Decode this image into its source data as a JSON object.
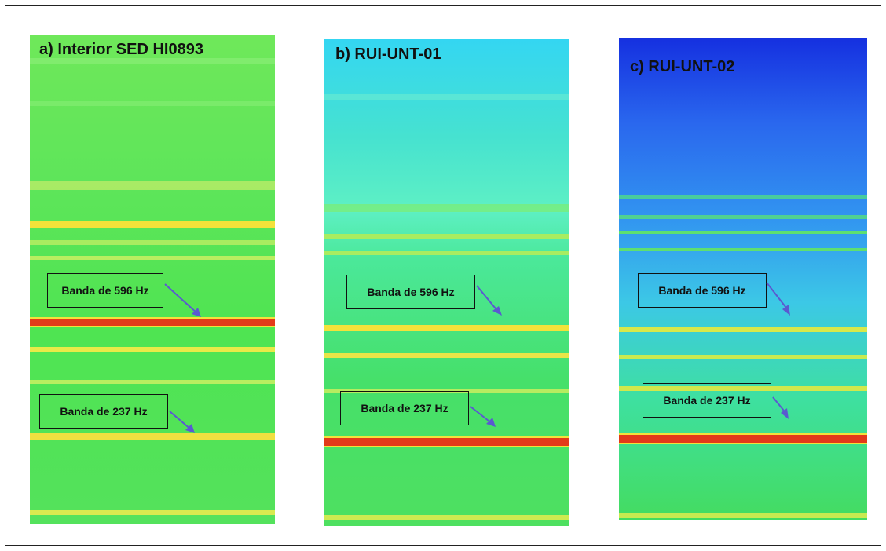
{
  "panels": [
    {
      "title": "a) Interior SED HI0893",
      "labels": [
        "Banda de 596 Hz",
        "Banda de 237 Hz"
      ],
      "palette": {
        "top": "#6ee86a",
        "mid": "#4fe84f",
        "bottom": "#52e45a"
      }
    },
    {
      "title": "b) RUI-UNT-01",
      "labels": [
        "Banda de 596 Hz",
        "Banda de 237 Hz"
      ],
      "palette": {
        "top": "#35d8f0",
        "mid": "#52e4a0",
        "bottom": "#48e060"
      }
    },
    {
      "title": "c) RUI-UNT-02",
      "labels": [
        "Banda de 596 Hz",
        "Banda de 237 Hz"
      ],
      "palette": {
        "top": "#1a3ee6",
        "mid": "#2f8ff0",
        "bottom": "#3fd96a"
      }
    }
  ],
  "colors": {
    "hot_band": "#e23a1a",
    "warm_band": "#f3e23a",
    "arrow": "#5a5ad0"
  }
}
